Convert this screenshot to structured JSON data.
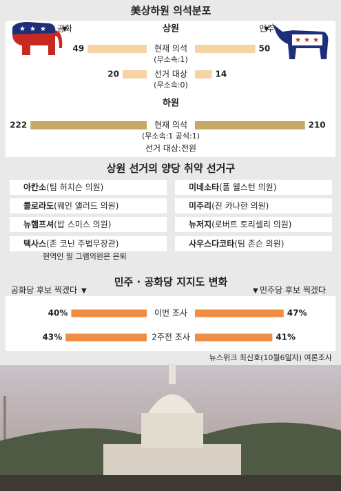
{
  "title": "美상하원 의석분포",
  "chart_data": [
    {
      "type": "butterfly",
      "title": "상원",
      "categories": [
        "현재 의석",
        "선거 대상"
      ],
      "category_notes": [
        "(무소속:1)",
        "(무소속:0)"
      ],
      "xlim": [
        0,
        56
      ],
      "series": [
        {
          "name": "공화",
          "color": "#f6d3a2",
          "values": [
            49,
            20
          ]
        },
        {
          "name": "민주",
          "color": "#f6d3a2",
          "values": [
            50,
            14
          ]
        }
      ]
    },
    {
      "type": "butterfly",
      "title": "하원",
      "categories": [
        "현재 의석"
      ],
      "category_notes": [
        "(무소속:1 공석:1)"
      ],
      "note": "선거 대상:전원",
      "xlim": [
        0,
        250
      ],
      "series": [
        {
          "name": "공화",
          "color": "#c9a866",
          "values": [
            222
          ]
        },
        {
          "name": "민주",
          "color": "#c9a866",
          "values": [
            210
          ]
        }
      ]
    },
    {
      "type": "butterfly",
      "title": "민주 · 공화당 지지도 변화",
      "categories": [
        "이번 조사",
        "2주전 조사"
      ],
      "xlim": [
        0,
        50
      ],
      "series": [
        {
          "name": "공화당 후보 찍겠다",
          "color": "#ef8d45",
          "values": [
            40,
            43
          ],
          "value_labels": [
            "40%",
            "43%"
          ]
        },
        {
          "name": "민주당 후보 찍겠다",
          "color": "#ef8d45",
          "values": [
            47,
            41
          ],
          "value_labels": [
            "47%",
            "41%"
          ]
        }
      ],
      "source": "뉴스위크 최신호(10월6일자) 여론조사"
    }
  ],
  "districts": {
    "title": "상원 선거의 양당 취약 선거구",
    "left": [
      {
        "state": "아칸소",
        "person": "(팀 허치슨 의원)"
      },
      {
        "state": "콜로라도",
        "person": "(웨인 앨러드 의원)"
      },
      {
        "state": "뉴햄프셔",
        "person": "(밥 스미스 의원)"
      },
      {
        "state": "텍사스",
        "person": "(존 코닌 주법무장관)"
      }
    ],
    "right": [
      {
        "state": "미네소타",
        "person": "(폴 웰스턴 의원)"
      },
      {
        "state": "미주리",
        "person": "(진 카나한 의원)"
      },
      {
        "state": "뉴저지",
        "person": "(로버트 토리셀리 의원)"
      },
      {
        "state": "사우스다코타",
        "person": "(팀 존슨 의원)"
      }
    ],
    "note": "현역인 필 그램의원은 은퇴"
  }
}
